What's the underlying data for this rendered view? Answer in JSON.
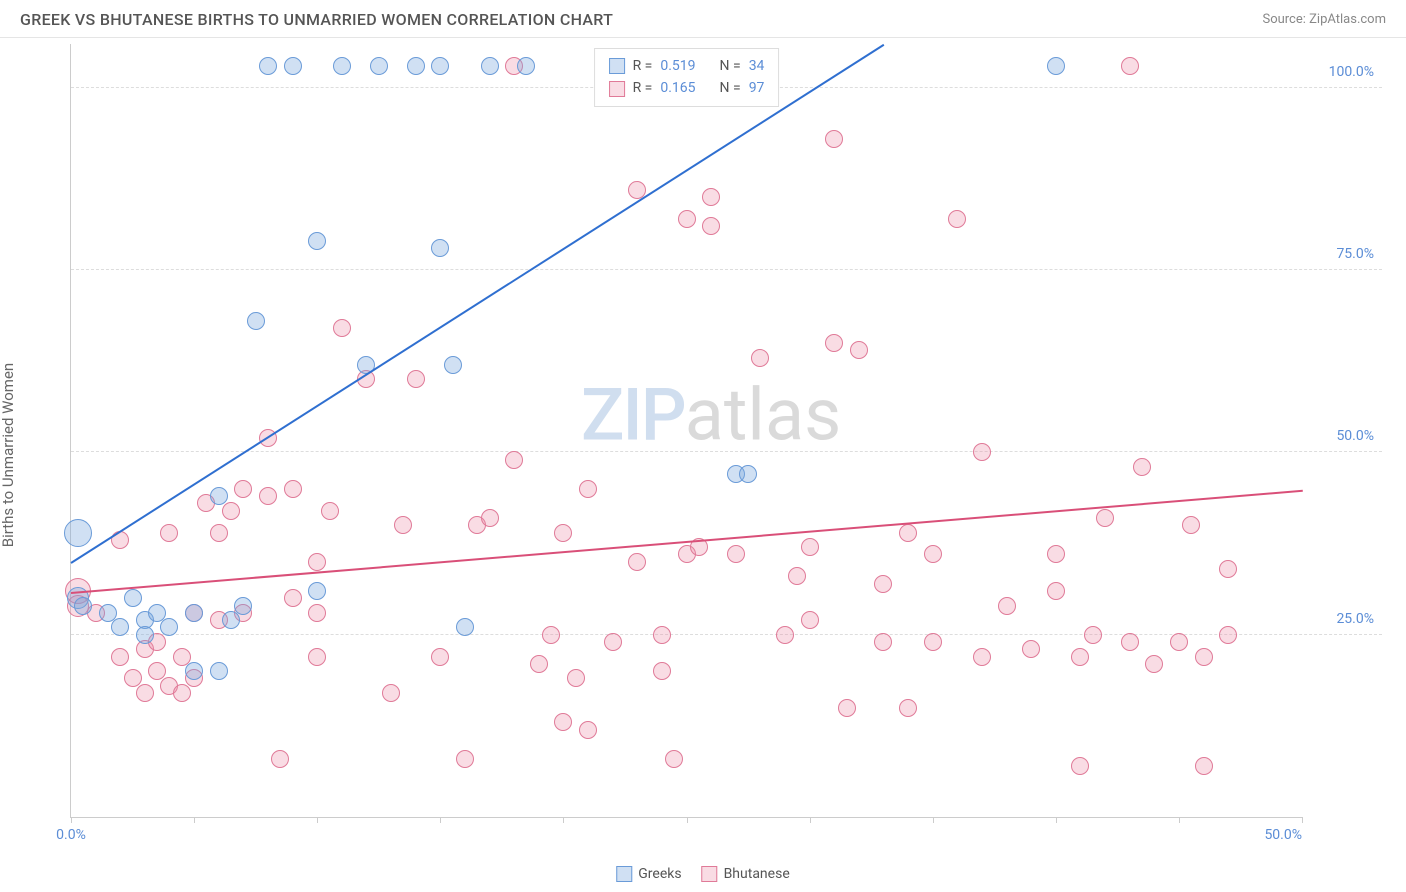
{
  "header": {
    "title": "GREEK VS BHUTANESE BIRTHS TO UNMARRIED WOMEN CORRELATION CHART",
    "source_label": "Source: ZipAtlas.com"
  },
  "watermark": {
    "part1": "ZIP",
    "part2": "atlas"
  },
  "y_axis": {
    "label": "Births to Unmarried Women"
  },
  "chart": {
    "type": "scatter",
    "xlim": [
      0,
      50
    ],
    "ylim": [
      0,
      106
    ],
    "x_ticks": [
      0,
      5,
      10,
      15,
      20,
      25,
      30,
      35,
      40,
      45,
      50
    ],
    "x_tick_labels": {
      "0": "0.0%",
      "50": "50.0%"
    },
    "y_ticks": [
      25,
      50,
      75,
      100
    ],
    "y_tick_labels": [
      "25.0%",
      "50.0%",
      "75.0%",
      "100.0%"
    ],
    "grid_color": "#dddddd",
    "background_color": "#ffffff",
    "axis_color": "#cccccc",
    "tick_label_color": "#5b8dd6",
    "series": {
      "greeks": {
        "label": "Greeks",
        "fill": "rgba(120,165,220,0.35)",
        "stroke": "#6a9bd8",
        "stroke_hex": "#6a9bd8",
        "point_radius": 9,
        "R": "0.519",
        "N": "34",
        "trend": {
          "x1": 0,
          "y1": 35,
          "x2": 33,
          "y2": 106,
          "color": "#2f6fd0",
          "width": 2
        },
        "points": [
          {
            "x": 0.3,
            "y": 30,
            "r": 11
          },
          {
            "x": 0.3,
            "y": 39,
            "r": 14
          },
          {
            "x": 0.5,
            "y": 29
          },
          {
            "x": 1.5,
            "y": 28
          },
          {
            "x": 2,
            "y": 26
          },
          {
            "x": 2.5,
            "y": 30
          },
          {
            "x": 3,
            "y": 27
          },
          {
            "x": 3,
            "y": 25
          },
          {
            "x": 3.5,
            "y": 28
          },
          {
            "x": 4,
            "y": 26
          },
          {
            "x": 5,
            "y": 20
          },
          {
            "x": 5,
            "y": 28
          },
          {
            "x": 6,
            "y": 20
          },
          {
            "x": 6,
            "y": 44
          },
          {
            "x": 6.5,
            "y": 27
          },
          {
            "x": 7,
            "y": 29
          },
          {
            "x": 7.5,
            "y": 68
          },
          {
            "x": 8,
            "y": 103
          },
          {
            "x": 9,
            "y": 103
          },
          {
            "x": 10,
            "y": 79
          },
          {
            "x": 10,
            "y": 31
          },
          {
            "x": 11,
            "y": 103
          },
          {
            "x": 12,
            "y": 62
          },
          {
            "x": 12.5,
            "y": 103
          },
          {
            "x": 14,
            "y": 103
          },
          {
            "x": 15,
            "y": 78
          },
          {
            "x": 15,
            "y": 103
          },
          {
            "x": 15.5,
            "y": 62
          },
          {
            "x": 16,
            "y": 26
          },
          {
            "x": 17,
            "y": 103
          },
          {
            "x": 18.5,
            "y": 103
          },
          {
            "x": 27,
            "y": 47
          },
          {
            "x": 27.5,
            "y": 47
          },
          {
            "x": 40,
            "y": 103
          }
        ]
      },
      "bhutanese": {
        "label": "Bhutanese",
        "fill": "rgba(235,140,165,0.3)",
        "stroke": "#e07a98",
        "stroke_hex": "#e07a98",
        "point_radius": 9,
        "R": "0.165",
        "N": "97",
        "trend": {
          "x1": 0,
          "y1": 31,
          "x2": 50,
          "y2": 45,
          "color": "#d94f78",
          "width": 2
        },
        "points": [
          {
            "x": 0.3,
            "y": 31,
            "r": 13
          },
          {
            "x": 0.3,
            "y": 29,
            "r": 11
          },
          {
            "x": 1,
            "y": 28
          },
          {
            "x": 2,
            "y": 22
          },
          {
            "x": 2,
            "y": 38
          },
          {
            "x": 2.5,
            "y": 19
          },
          {
            "x": 3,
            "y": 23
          },
          {
            "x": 3,
            "y": 17
          },
          {
            "x": 3.5,
            "y": 20
          },
          {
            "x": 3.5,
            "y": 24
          },
          {
            "x": 4,
            "y": 39
          },
          {
            "x": 4,
            "y": 18
          },
          {
            "x": 4.5,
            "y": 22
          },
          {
            "x": 4.5,
            "y": 17
          },
          {
            "x": 5,
            "y": 19
          },
          {
            "x": 5,
            "y": 28
          },
          {
            "x": 5.5,
            "y": 43
          },
          {
            "x": 6,
            "y": 27
          },
          {
            "x": 6,
            "y": 39
          },
          {
            "x": 6.5,
            "y": 42
          },
          {
            "x": 7,
            "y": 45
          },
          {
            "x": 7,
            "y": 28
          },
          {
            "x": 8,
            "y": 44
          },
          {
            "x": 8,
            "y": 52
          },
          {
            "x": 8.5,
            "y": 8
          },
          {
            "x": 9,
            "y": 30
          },
          {
            "x": 9,
            "y": 45
          },
          {
            "x": 10,
            "y": 22
          },
          {
            "x": 10,
            "y": 28
          },
          {
            "x": 10,
            "y": 35
          },
          {
            "x": 10.5,
            "y": 42
          },
          {
            "x": 11,
            "y": 67
          },
          {
            "x": 12,
            "y": 60
          },
          {
            "x": 13,
            "y": 17
          },
          {
            "x": 13.5,
            "y": 40
          },
          {
            "x": 14,
            "y": 60
          },
          {
            "x": 15,
            "y": 22
          },
          {
            "x": 16,
            "y": 8
          },
          {
            "x": 16.5,
            "y": 40
          },
          {
            "x": 17,
            "y": 41
          },
          {
            "x": 18,
            "y": 49
          },
          {
            "x": 18,
            "y": 103
          },
          {
            "x": 19,
            "y": 21
          },
          {
            "x": 19.5,
            "y": 25
          },
          {
            "x": 20,
            "y": 39
          },
          {
            "x": 20,
            "y": 13
          },
          {
            "x": 20.5,
            "y": 19
          },
          {
            "x": 21,
            "y": 12
          },
          {
            "x": 21,
            "y": 45
          },
          {
            "x": 22,
            "y": 24
          },
          {
            "x": 23,
            "y": 86
          },
          {
            "x": 23,
            "y": 35
          },
          {
            "x": 24,
            "y": 20
          },
          {
            "x": 24,
            "y": 25
          },
          {
            "x": 24.5,
            "y": 8
          },
          {
            "x": 25,
            "y": 36
          },
          {
            "x": 25,
            "y": 82
          },
          {
            "x": 25.5,
            "y": 37
          },
          {
            "x": 26,
            "y": 85
          },
          {
            "x": 26,
            "y": 81
          },
          {
            "x": 27,
            "y": 36
          },
          {
            "x": 28,
            "y": 63
          },
          {
            "x": 29,
            "y": 25
          },
          {
            "x": 29.5,
            "y": 33
          },
          {
            "x": 30,
            "y": 37
          },
          {
            "x": 30,
            "y": 27
          },
          {
            "x": 31,
            "y": 93
          },
          {
            "x": 31,
            "y": 65
          },
          {
            "x": 31.5,
            "y": 15
          },
          {
            "x": 32,
            "y": 64
          },
          {
            "x": 33,
            "y": 32
          },
          {
            "x": 33,
            "y": 24
          },
          {
            "x": 34,
            "y": 15
          },
          {
            "x": 34,
            "y": 39
          },
          {
            "x": 35,
            "y": 24
          },
          {
            "x": 35,
            "y": 36
          },
          {
            "x": 36,
            "y": 82
          },
          {
            "x": 37,
            "y": 50
          },
          {
            "x": 37,
            "y": 22
          },
          {
            "x": 38,
            "y": 29
          },
          {
            "x": 39,
            "y": 23
          },
          {
            "x": 40,
            "y": 31
          },
          {
            "x": 40,
            "y": 36
          },
          {
            "x": 41,
            "y": 22
          },
          {
            "x": 41,
            "y": 7
          },
          {
            "x": 41.5,
            "y": 25
          },
          {
            "x": 42,
            "y": 41
          },
          {
            "x": 43,
            "y": 103
          },
          {
            "x": 43,
            "y": 24
          },
          {
            "x": 43.5,
            "y": 48
          },
          {
            "x": 44,
            "y": 21
          },
          {
            "x": 45,
            "y": 24
          },
          {
            "x": 45.5,
            "y": 40
          },
          {
            "x": 46,
            "y": 7
          },
          {
            "x": 46,
            "y": 22
          },
          {
            "x": 47,
            "y": 34
          },
          {
            "x": 47,
            "y": 25
          }
        ]
      }
    }
  },
  "legend_top": {
    "r_label": "R =",
    "n_label": "N ="
  },
  "legend_bottom": {
    "items": [
      "greeks",
      "bhutanese"
    ]
  }
}
